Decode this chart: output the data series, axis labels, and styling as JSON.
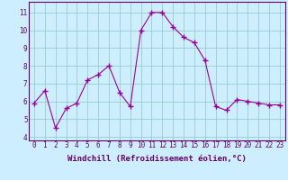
{
  "x": [
    0,
    1,
    2,
    3,
    4,
    5,
    6,
    7,
    8,
    9,
    10,
    11,
    12,
    13,
    14,
    15,
    16,
    17,
    18,
    19,
    20,
    21,
    22,
    23
  ],
  "y": [
    5.9,
    6.6,
    4.5,
    5.6,
    5.9,
    7.2,
    7.5,
    8.0,
    6.5,
    5.7,
    10.0,
    11.0,
    11.0,
    10.2,
    9.6,
    9.3,
    8.3,
    5.7,
    5.5,
    6.1,
    6.0,
    5.9,
    5.8,
    5.8
  ],
  "xlabel": "Windchill (Refroidissement éolien,°C)",
  "xlim": [
    -0.5,
    23.5
  ],
  "ylim": [
    3.8,
    11.6
  ],
  "yticks": [
    4,
    5,
    6,
    7,
    8,
    9,
    10,
    11
  ],
  "xticks": [
    0,
    1,
    2,
    3,
    4,
    5,
    6,
    7,
    8,
    9,
    10,
    11,
    12,
    13,
    14,
    15,
    16,
    17,
    18,
    19,
    20,
    21,
    22,
    23
  ],
  "line_color": "#990099",
  "marker": "+",
  "bg_color": "#cceeff",
  "grid_color": "#99cccc",
  "axis_label_color": "#660066",
  "tick_label_color": "#660066",
  "border_color": "#660066",
  "xlabel_fontsize": 6.5,
  "tick_fontsize": 5.5
}
